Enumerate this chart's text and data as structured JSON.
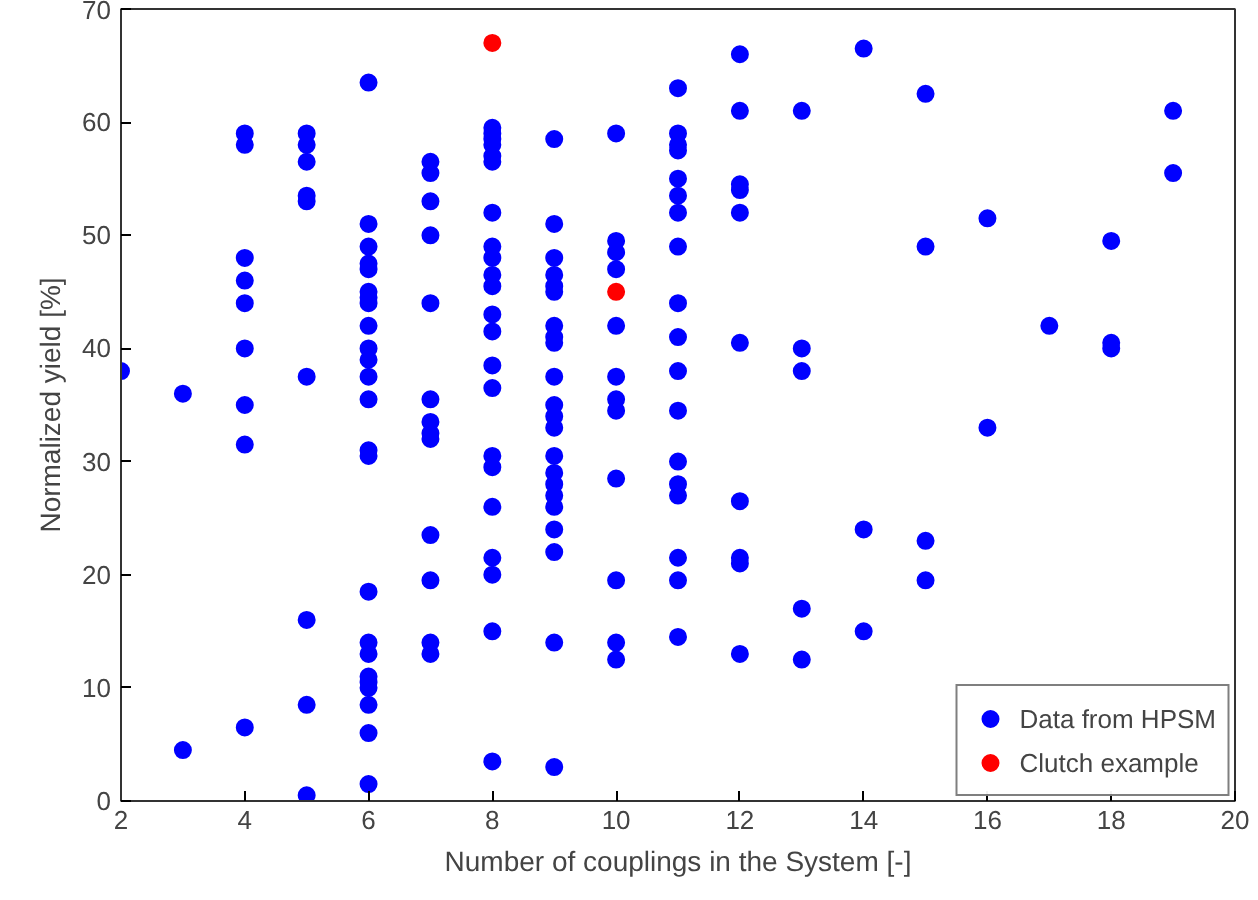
{
  "chart_data": {
    "type": "scatter",
    "xlabel": "Number of couplings in the System [-]",
    "ylabel": "Normalized yield [%]",
    "xlim": [
      2,
      20
    ],
    "xticks": [
      2,
      4,
      6,
      8,
      10,
      12,
      14,
      16,
      18,
      20
    ],
    "ylim": [
      0,
      70
    ],
    "yticks": [
      0,
      10,
      20,
      30,
      40,
      50,
      60,
      70
    ],
    "grid": false,
    "legend": "bottom right",
    "marker": "circle",
    "series": [
      {
        "name": "Data from HPSM",
        "color": "#0000ff",
        "x": [
          2,
          3,
          3,
          4,
          4,
          4,
          4,
          4,
          4,
          4,
          4,
          4,
          5,
          5,
          5,
          5,
          5,
          5,
          5,
          5,
          5,
          6,
          6,
          6,
          6,
          6,
          6,
          6,
          6,
          6,
          6,
          6,
          6,
          6,
          6,
          6,
          6,
          6,
          6,
          6,
          6,
          6,
          6,
          6,
          6,
          7,
          7,
          7,
          7,
          7,
          7,
          7,
          7,
          7,
          7,
          7,
          7,
          7,
          8,
          8,
          8,
          8,
          8,
          8,
          8,
          8,
          8,
          8,
          8,
          8,
          8,
          8,
          8,
          8,
          8,
          8,
          8,
          8,
          8,
          8,
          9,
          9,
          9,
          9,
          9,
          9,
          9,
          9,
          9,
          9,
          9,
          9,
          9,
          9,
          9,
          9,
          9,
          9,
          9,
          9,
          9,
          9,
          10,
          10,
          10,
          10,
          10,
          10,
          10,
          10,
          10,
          10,
          10,
          10,
          11,
          11,
          11,
          11,
          11,
          11,
          11,
          11,
          11,
          11,
          11,
          11,
          11,
          11,
          11,
          11,
          11,
          11,
          12,
          12,
          12,
          12,
          12,
          12,
          12,
          12,
          12,
          12,
          13,
          13,
          13,
          13,
          13,
          14,
          14,
          14,
          15,
          15,
          15,
          15,
          16,
          16,
          17,
          18,
          18,
          18,
          19,
          19
        ],
        "values": [
          38,
          36,
          4.5,
          59,
          58,
          48,
          46,
          44,
          40,
          35,
          31.5,
          6.5,
          59,
          58,
          56.5,
          53.5,
          53,
          37.5,
          16,
          8.5,
          0.5,
          63.5,
          51,
          49,
          47.5,
          47,
          45,
          44.5,
          44,
          42,
          40,
          39,
          37.5,
          35.5,
          31,
          30.5,
          18.5,
          14,
          13,
          11,
          10.5,
          10,
          8.5,
          6,
          1.5,
          56.5,
          55.5,
          53,
          50,
          44,
          35.5,
          33.5,
          32.5,
          32,
          23.5,
          19.5,
          14,
          13,
          59.5,
          59,
          58.5,
          58,
          57,
          56.5,
          52,
          49,
          48,
          46.5,
          45.5,
          43,
          41.5,
          38.5,
          36.5,
          30.5,
          29.5,
          26,
          21.5,
          20,
          15,
          3.5,
          58.5,
          51,
          48,
          46.5,
          45.5,
          45,
          42,
          41,
          40.5,
          37.5,
          35,
          34,
          33,
          30.5,
          29,
          28,
          27,
          26,
          24,
          22,
          14,
          3,
          59,
          49.5,
          48.5,
          47,
          42,
          37.5,
          35.5,
          34.5,
          28.5,
          19.5,
          14,
          12.5,
          63,
          59,
          58,
          57.5,
          55,
          53.5,
          52,
          49,
          44,
          41,
          38,
          34.5,
          30,
          28,
          27,
          21.5,
          19.5,
          14.5,
          66,
          61,
          54.5,
          54,
          52,
          40.5,
          26.5,
          21.5,
          21,
          13,
          61,
          40,
          38,
          17,
          12.5,
          66.5,
          24,
          15,
          62.5,
          49,
          23,
          19.5,
          51.5,
          33,
          42,
          49.5,
          40.5,
          40,
          61,
          55.5
        ]
      },
      {
        "name": "Clutch example",
        "color": "#ff0000",
        "x": [
          8,
          10
        ],
        "values": [
          67,
          45
        ]
      }
    ]
  }
}
